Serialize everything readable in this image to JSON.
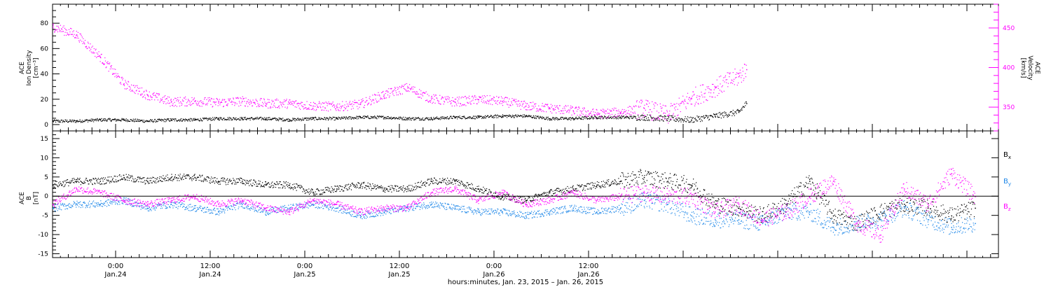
{
  "chart_data": [
    {
      "type": "scatter",
      "panel": "top",
      "ylabel": [
        "ACE",
        "Ion Density",
        "[cm⁻³]"
      ],
      "y2label": [
        "ACE",
        "Velocity",
        "[km/s]"
      ],
      "ylim": [
        -5,
        95
      ],
      "y2lim": [
        320,
        480
      ],
      "yticks": [
        0,
        20,
        40,
        60,
        80
      ],
      "y2ticks": [
        350,
        400,
        450
      ],
      "series": [
        {
          "name": "",
          "axis": "left",
          "color": "#000000",
          "x_hours": [
            0,
            3,
            6,
            9,
            12,
            15,
            18,
            21,
            24,
            27,
            30,
            33,
            36,
            39,
            42,
            45,
            48,
            51,
            54,
            57,
            60,
            63,
            66,
            69,
            72,
            75,
            78,
            81,
            84,
            87,
            88
          ],
          "values": [
            3,
            3,
            4,
            4,
            3,
            4,
            4,
            5,
            5,
            5,
            4,
            5,
            5,
            6,
            6,
            5,
            5,
            6,
            6,
            7,
            7,
            5,
            5,
            6,
            6,
            6,
            5,
            4,
            7,
            10,
            17
          ]
        },
        {
          "name": "",
          "axis": "right",
          "color": "#ff00ff",
          "x_hours": [
            0,
            3,
            6,
            9,
            12,
            15,
            18,
            21,
            24,
            27,
            30,
            33,
            36,
            39,
            42,
            45,
            48,
            51,
            54,
            57,
            60,
            63,
            66,
            69,
            72,
            75,
            78,
            81,
            84,
            87,
            88
          ],
          "values": [
            452,
            442,
            414,
            380,
            366,
            357,
            358,
            356,
            358,
            355,
            355,
            352,
            351,
            354,
            366,
            375,
            361,
            357,
            360,
            358,
            352,
            349,
            346,
            342,
            344,
            349,
            340,
            362,
            375,
            389,
            398
          ]
        }
      ]
    },
    {
      "type": "scatter",
      "panel": "bottom",
      "ylabel": [
        "ACE",
        "B",
        "[nT]"
      ],
      "ylim": [
        -16,
        17
      ],
      "yticks": [
        -15,
        -10,
        -5,
        0,
        5,
        10,
        15
      ],
      "zero_line": true,
      "legend_position": "right",
      "series": [
        {
          "name": "B",
          "sub": "x",
          "color": "#000000",
          "x_hours": [
            0,
            3,
            6,
            9,
            12,
            15,
            18,
            21,
            24,
            27,
            30,
            33,
            36,
            39,
            42,
            45,
            48,
            51,
            54,
            57,
            60,
            63,
            66,
            69,
            72,
            75,
            78,
            81,
            84,
            87,
            90,
            93,
            96,
            99,
            102,
            105,
            108,
            111,
            114,
            117
          ],
          "values": [
            3,
            4,
            4,
            5,
            4,
            5,
            5,
            4,
            4,
            3,
            3,
            1,
            2,
            3,
            2,
            2,
            4,
            4,
            2,
            0,
            -1,
            1,
            2,
            3,
            4,
            5,
            4,
            3,
            -2,
            -3,
            -5,
            -2,
            4,
            -5,
            -7,
            -4,
            -2,
            -3,
            -5,
            -3
          ]
        },
        {
          "name": "B",
          "sub": "y",
          "color": "#1c86e8",
          "x_hours": [
            0,
            3,
            6,
            9,
            12,
            15,
            18,
            21,
            24,
            27,
            30,
            33,
            36,
            39,
            42,
            45,
            48,
            51,
            54,
            57,
            60,
            63,
            66,
            69,
            72,
            75,
            78,
            81,
            84,
            87,
            90,
            93,
            96,
            99,
            102,
            105,
            108,
            111,
            114,
            117
          ],
          "values": [
            -3,
            -2,
            -2,
            -1,
            -3,
            -2,
            -3,
            -4,
            -2,
            -4,
            -3,
            -2,
            -3,
            -5,
            -4,
            -3,
            -2,
            -3,
            -4,
            -4,
            -5,
            -4,
            -3,
            -4,
            -3,
            -1,
            -2,
            -5,
            -6,
            -6,
            -7,
            -4,
            -4,
            -8,
            -7,
            -6,
            -3,
            -6,
            -8,
            -7
          ]
        },
        {
          "name": "B",
          "sub": "z",
          "color": "#ff00ff",
          "x_hours": [
            0,
            3,
            6,
            9,
            12,
            15,
            18,
            21,
            24,
            27,
            30,
            33,
            36,
            39,
            42,
            45,
            48,
            51,
            54,
            57,
            60,
            63,
            66,
            69,
            72,
            75,
            78,
            81,
            84,
            87,
            90,
            93,
            96,
            99,
            102,
            105,
            108,
            111,
            114,
            117
          ],
          "values": [
            -2,
            2,
            1,
            -1,
            -2,
            -1,
            0,
            -2,
            -1,
            -3,
            -4,
            -1,
            -2,
            -4,
            -3,
            -3,
            1,
            2,
            -1,
            1,
            -2,
            -1,
            1,
            -1,
            0,
            1,
            0,
            0,
            -4,
            -2,
            -6,
            -4,
            0,
            4,
            -7,
            -10,
            2,
            -2,
            6,
            0
          ]
        }
      ]
    }
  ],
  "x_axis": {
    "start_hour": 16,
    "end_hour": 136,
    "ticks": [
      {
        "hour": 24,
        "time": "0:00",
        "date": "Jan.24"
      },
      {
        "hour": 36,
        "time": "12:00",
        "date": "Jan.24"
      },
      {
        "hour": 48,
        "time": "0:00",
        "date": "Jan.25"
      },
      {
        "hour": 60,
        "time": "12:00",
        "date": "Jan.25"
      },
      {
        "hour": 72,
        "time": "0:00",
        "date": "Jan.26"
      },
      {
        "hour": 84,
        "time": "12:00",
        "date": "Jan.26"
      }
    ],
    "title": "hours:minutes, Jan. 23, 2015 – Jan. 26, 2015"
  }
}
